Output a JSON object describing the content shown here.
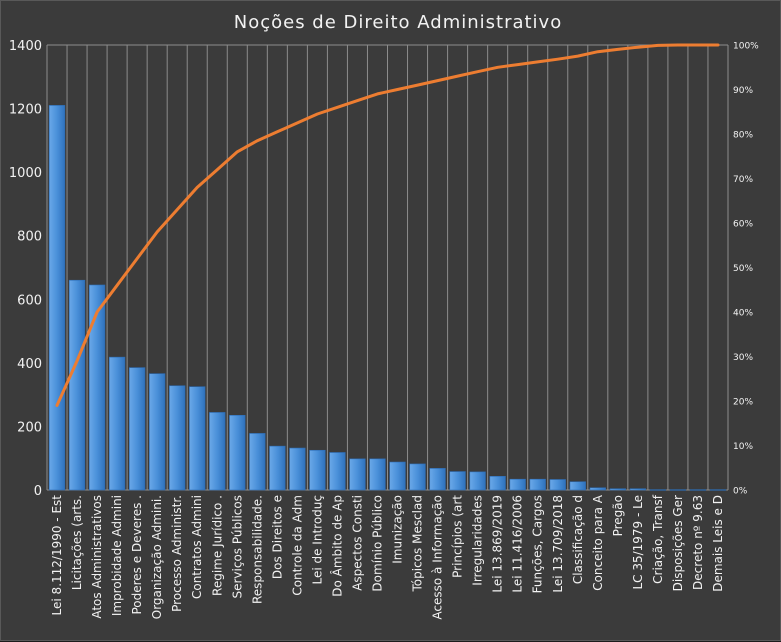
{
  "chart_data": {
    "type": "bar",
    "title": "Noções de Direito Administrativo",
    "categories": [
      "Lei 8.112/1990 - Est",
      "Licitações (arts.",
      "Atos Administrativos",
      "Improbidade Admini",
      "Poderes e Deveres .",
      "Organização Admini.",
      "Processo Administr.",
      "Contratos Admini",
      "Regime Jurídico .",
      "Serviços Públicos",
      "Responsabilidade.",
      "Dos Direitos e",
      "Controle da Adm",
      "Lei de Introduç",
      "Do Âmbito de Ap",
      "Aspectos Consti",
      "Domínio Público",
      "Imunização",
      "Tópicos Mesclad",
      "Acesso à Informação",
      "Princípios (art",
      "Irregularidades",
      "Lei 13.869/2019",
      "Lei 11.416/2006",
      "Funções, Cargos",
      "Lei 13.709/2018",
      "Classificação d",
      "Conceito para A",
      "Pregão",
      "LC 35/1979 - Le",
      "Criação, Transf",
      "Disposições Ger",
      "Decreto nº 9.63",
      "Demais Leis e D"
    ],
    "series": [
      {
        "type": "bar",
        "color": "#4a90d9",
        "values": [
          1210,
          660,
          645,
          418,
          385,
          366,
          328,
          325,
          244,
          235,
          178,
          138,
          132,
          125,
          118,
          98,
          98,
          88,
          82,
          68,
          58,
          57,
          43,
          34,
          34,
          33,
          26,
          7,
          4,
          4,
          1,
          1,
          1,
          1
        ]
      },
      {
        "type": "line",
        "axis": "secondary",
        "color": "#ed7d31",
        "values": [
          0.19,
          0.29,
          0.4,
          0.46,
          0.52,
          0.58,
          0.63,
          0.68,
          0.72,
          0.76,
          0.785,
          0.805,
          0.825,
          0.845,
          0.86,
          0.875,
          0.89,
          0.9,
          0.91,
          0.92,
          0.93,
          0.94,
          0.95,
          0.956,
          0.962,
          0.968,
          0.975,
          0.985,
          0.99,
          0.995,
          0.999,
          1.0,
          1.0,
          1.0
        ]
      }
    ],
    "y_axis": {
      "min": 0,
      "max": 1400,
      "step": 200,
      "ticks": [
        "0",
        "200",
        "400",
        "600",
        "800",
        "1000",
        "1200",
        "1400"
      ]
    },
    "y2_axis": {
      "min": 0,
      "max": 1,
      "ticks": [
        "0%",
        "10%",
        "20%",
        "30%",
        "40%",
        "50%",
        "60%",
        "70%",
        "80%",
        "90%",
        "100%"
      ]
    },
    "grid": "vertical",
    "legend": "none",
    "colors": {
      "background": "#3b3b3b",
      "grid": "#8c8c8c",
      "text": "#f2f2f2",
      "bar_edge": "#2e6db5"
    }
  }
}
